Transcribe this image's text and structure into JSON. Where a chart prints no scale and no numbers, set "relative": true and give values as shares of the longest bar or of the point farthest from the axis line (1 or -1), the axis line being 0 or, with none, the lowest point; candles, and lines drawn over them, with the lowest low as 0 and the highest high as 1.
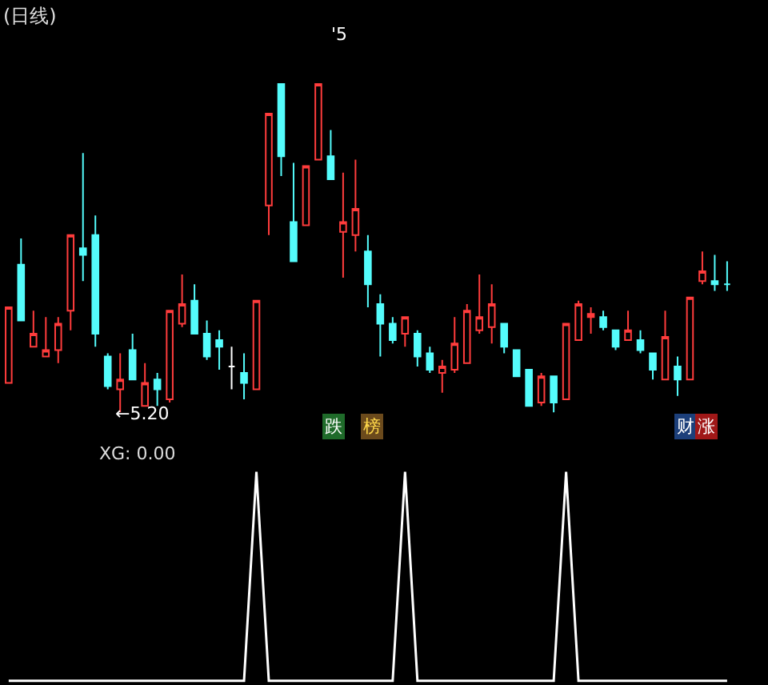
{
  "chart_data": [
    {
      "type": "candlestick",
      "title": "(日线)",
      "relative": true,
      "legend": false,
      "categories": [
        null,
        null,
        null,
        null,
        null,
        null,
        null,
        null,
        null,
        null,
        null,
        null,
        null,
        null,
        null,
        null,
        null,
        null,
        null,
        null,
        null,
        null,
        null,
        null,
        null,
        null,
        null,
        null,
        null,
        null,
        null,
        null,
        null,
        null,
        null,
        null,
        null,
        null,
        null,
        null,
        null,
        null,
        null,
        null,
        null,
        null,
        null,
        null,
        null,
        null,
        null,
        null,
        null,
        null,
        null,
        null,
        null,
        null,
        null
      ],
      "ohlc": [
        [
          0.09,
          0.32,
          0.09,
          0.32
        ],
        [
          0.45,
          0.53,
          0.28,
          0.28
        ],
        [
          0.2,
          0.31,
          0.2,
          0.24
        ],
        [
          0.17,
          0.29,
          0.17,
          0.19
        ],
        [
          0.19,
          0.29,
          0.15,
          0.27
        ],
        [
          0.31,
          0.54,
          0.25,
          0.54
        ],
        [
          0.5,
          0.79,
          0.4,
          0.48
        ],
        [
          0.54,
          0.6,
          0.2,
          0.24
        ],
        [
          0.17,
          0.18,
          0.07,
          0.08
        ],
        [
          0.07,
          0.18,
          0,
          0.1
        ],
        [
          0.19,
          0.24,
          0.1,
          0.1
        ],
        [
          0.02,
          0.15,
          0.02,
          0.09
        ],
        [
          0.1,
          0.12,
          0.02,
          0.07
        ],
        [
          0.04,
          0.31,
          0.03,
          0.31
        ],
        [
          0.27,
          0.42,
          0.26,
          0.33
        ],
        [
          0.34,
          0.39,
          0.24,
          0.24
        ],
        [
          0.24,
          0.28,
          0.16,
          0.17
        ],
        [
          0.22,
          0.25,
          0.13,
          0.2
        ],
        [
          0.14,
          0.2,
          0.07,
          0.14
        ],
        [
          0.12,
          0.18,
          0.04,
          0.09
        ],
        [
          0.07,
          0.34,
          0.07,
          0.34
        ],
        [
          0.63,
          0.91,
          0.54,
          0.91
        ],
        [
          1.0,
          1.0,
          0.72,
          0.78
        ],
        [
          0.58,
          0.76,
          0.46,
          0.46
        ],
        [
          0.57,
          0.75,
          0.57,
          0.75
        ],
        [
          0.77,
          1.0,
          0.77,
          1.0
        ],
        [
          0.78,
          0.86,
          0.71,
          0.71
        ],
        [
          0.55,
          0.73,
          0.41,
          0.58
        ],
        [
          0.54,
          0.77,
          0.49,
          0.62
        ],
        [
          0.49,
          0.54,
          0.32,
          0.39
        ],
        [
          0.33,
          0.36,
          0.17,
          0.27
        ],
        [
          0.27,
          0.29,
          0.21,
          0.22
        ],
        [
          0.24,
          0.29,
          0.2,
          0.29
        ],
        [
          0.24,
          0.25,
          0.14,
          0.17
        ],
        [
          0.18,
          0.2,
          0.12,
          0.13
        ],
        [
          0.12,
          0.16,
          0.06,
          0.14
        ],
        [
          0.13,
          0.29,
          0.12,
          0.21
        ],
        [
          0.15,
          0.33,
          0.15,
          0.31
        ],
        [
          0.25,
          0.42,
          0.24,
          0.29
        ],
        [
          0.26,
          0.39,
          0.21,
          0.33
        ],
        [
          0.27,
          0.27,
          0.18,
          0.2
        ],
        [
          0.19,
          0.19,
          0.11,
          0.11
        ],
        [
          0.13,
          0.13,
          0.02,
          0.02
        ],
        [
          0.03,
          0.12,
          0.02,
          0.11
        ],
        [
          0.11,
          0.11,
          0.0,
          0.03
        ],
        [
          0.04,
          0.27,
          0.04,
          0.27
        ],
        [
          0.22,
          0.34,
          0.22,
          0.33
        ],
        [
          0.29,
          0.32,
          0.24,
          0.3
        ],
        [
          0.29,
          0.31,
          0.25,
          0.26
        ],
        [
          0.25,
          0.25,
          0.19,
          0.2
        ],
        [
          0.22,
          0.31,
          0.22,
          0.25
        ],
        [
          0.22,
          0.25,
          0.18,
          0.19
        ],
        [
          0.18,
          0.18,
          0.1,
          0.13
        ],
        [
          0.1,
          0.31,
          0.1,
          0.23
        ],
        [
          0.14,
          0.17,
          0.05,
          0.1
        ],
        [
          0.1,
          0.35,
          0.1,
          0.35
        ],
        [
          0.4,
          0.49,
          0.39,
          0.43
        ],
        [
          0.4,
          0.48,
          0.37,
          0.39
        ],
        [
          0.39,
          0.46,
          0.37,
          0.39
        ]
      ],
      "colors": [
        "#ff3c3c",
        "#54fcfc",
        "#ff3c3c",
        "#ff3c3c",
        "#ff3c3c",
        "#ff3c3c",
        "#54fcfc",
        "#54fcfc",
        "#54fcfc",
        "#ff3c3c",
        "#54fcfc",
        "#ff3c3c",
        "#54fcfc",
        "#ff3c3c",
        "#ff3c3c",
        "#54fcfc",
        "#54fcfc",
        "#54fcfc",
        "#ffffff",
        "#54fcfc",
        "#ff3c3c",
        "#ff3c3c",
        "#54fcfc",
        "#54fcfc",
        "#ff3c3c",
        "#ff3c3c",
        "#54fcfc",
        "#ff3c3c",
        "#ff3c3c",
        "#54fcfc",
        "#54fcfc",
        "#54fcfc",
        "#ff3c3c",
        "#54fcfc",
        "#54fcfc",
        "#ff3c3c",
        "#ff3c3c",
        "#ff3c3c",
        "#ff3c3c",
        "#ff3c3c",
        "#54fcfc",
        "#54fcfc",
        "#54fcfc",
        "#ff3c3c",
        "#54fcfc",
        "#ff3c3c",
        "#ff3c3c",
        "#ff3c3c",
        "#54fcfc",
        "#54fcfc",
        "#ff3c3c",
        "#54fcfc",
        "#54fcfc",
        "#ff3c3c",
        "#54fcfc",
        "#ff3c3c",
        "#ff3c3c",
        "#54fcfc",
        "#54fcfc"
      ],
      "annotations": [
        "'5",
        "←5.20",
        "跌",
        "榜",
        "财",
        "涨"
      ]
    },
    {
      "type": "line",
      "title": "XG: 0.00",
      "relative": true,
      "legend": false,
      "categories": [
        null,
        null,
        null,
        null,
        null,
        null,
        null,
        null,
        null,
        null,
        null,
        null,
        null,
        null,
        null,
        null,
        null,
        null,
        null,
        null,
        null,
        null,
        null,
        null,
        null,
        null,
        null,
        null,
        null,
        null,
        null,
        null,
        null,
        null,
        null,
        null,
        null,
        null,
        null,
        null,
        null,
        null,
        null,
        null,
        null,
        null,
        null,
        null,
        null,
        null,
        null,
        null,
        null,
        null,
        null,
        null,
        null,
        null,
        null
      ],
      "series": [
        {
          "color": "#ffffff",
          "values": [
            0,
            0,
            0,
            0,
            0,
            0,
            0,
            0,
            0,
            0,
            0,
            0,
            0,
            0,
            0,
            0,
            0,
            0,
            0,
            0,
            1,
            0,
            0,
            0,
            0,
            0,
            0,
            0,
            0,
            0,
            0,
            0,
            1,
            0,
            0,
            0,
            0,
            0,
            0,
            0,
            0,
            0,
            0,
            0,
            0,
            1,
            0,
            0,
            0,
            0,
            0,
            0,
            0,
            0,
            0,
            0,
            0,
            0,
            0
          ]
        }
      ]
    }
  ]
}
